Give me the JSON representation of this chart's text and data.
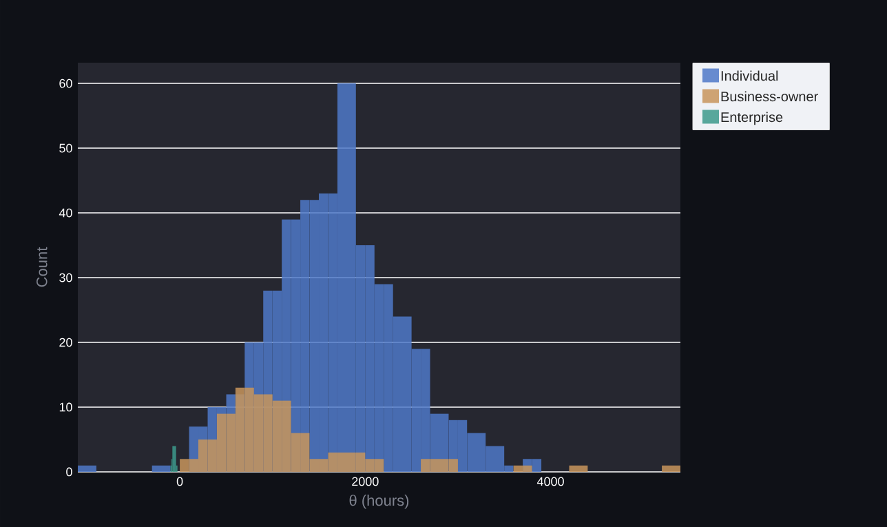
{
  "chart_data": {
    "type": "histogram",
    "xlabel": "θ (hours)",
    "ylabel": "Count",
    "bins": [
      -1100,
      -900,
      -300,
      -100,
      -90,
      -80,
      -40,
      -25,
      0,
      100,
      200,
      300,
      400,
      500,
      600,
      700,
      800,
      900,
      1000,
      1100,
      1200,
      1300,
      1400,
      1500,
      1600,
      1700,
      1900,
      2000,
      2100,
      2200,
      2300,
      2500,
      2600,
      2700,
      2900,
      3000,
      3100,
      3300,
      3500,
      3600,
      3700,
      3800,
      3900,
      4200,
      4400,
      5200,
      5400
    ],
    "series": [
      {
        "name": "Individual",
        "color": "#4f79c8",
        "values": [
          1,
          0,
          1,
          0,
          0,
          0,
          0,
          0,
          0,
          7,
          7,
          10,
          10,
          12,
          12,
          20,
          20,
          28,
          28,
          39,
          39,
          42,
          42,
          43,
          43,
          60,
          35,
          35,
          29,
          29,
          24,
          19,
          19,
          9,
          8,
          8,
          6,
          4,
          1,
          null,
          2,
          2,
          0,
          0,
          0,
          0
        ]
      },
      {
        "name": "Business-owner",
        "color": "#c8955c",
        "values": [
          0,
          0,
          0,
          0,
          0,
          0,
          0,
          0,
          2,
          2,
          5,
          5,
          9,
          9,
          13,
          13,
          12,
          12,
          11,
          11,
          6,
          6,
          2,
          2,
          3,
          3,
          3,
          2,
          2,
          0,
          0,
          0,
          2,
          2,
          2,
          0,
          0,
          0,
          0,
          1,
          1,
          0,
          0,
          1,
          0,
          1
        ]
      },
      {
        "name": "Enterprise",
        "color": "#3d9a8c",
        "values": [
          0,
          0,
          0,
          1,
          2,
          4,
          1,
          0,
          0,
          0,
          0,
          0,
          0,
          0,
          0,
          0,
          0,
          0,
          0,
          0,
          0,
          0,
          0,
          0,
          0,
          0,
          0,
          0,
          0,
          0,
          0,
          0,
          0,
          0,
          0,
          0,
          0,
          0,
          0,
          0,
          0,
          0,
          0,
          0,
          0,
          0
        ]
      }
    ],
    "xlim": [
      -1100,
      5400
    ],
    "ylim": [
      0,
      63.2
    ],
    "xticks": [
      0,
      2000,
      4000
    ],
    "yticks": [
      0,
      10,
      20,
      30,
      40,
      50,
      60
    ],
    "grid": "y",
    "legend": "top right"
  }
}
